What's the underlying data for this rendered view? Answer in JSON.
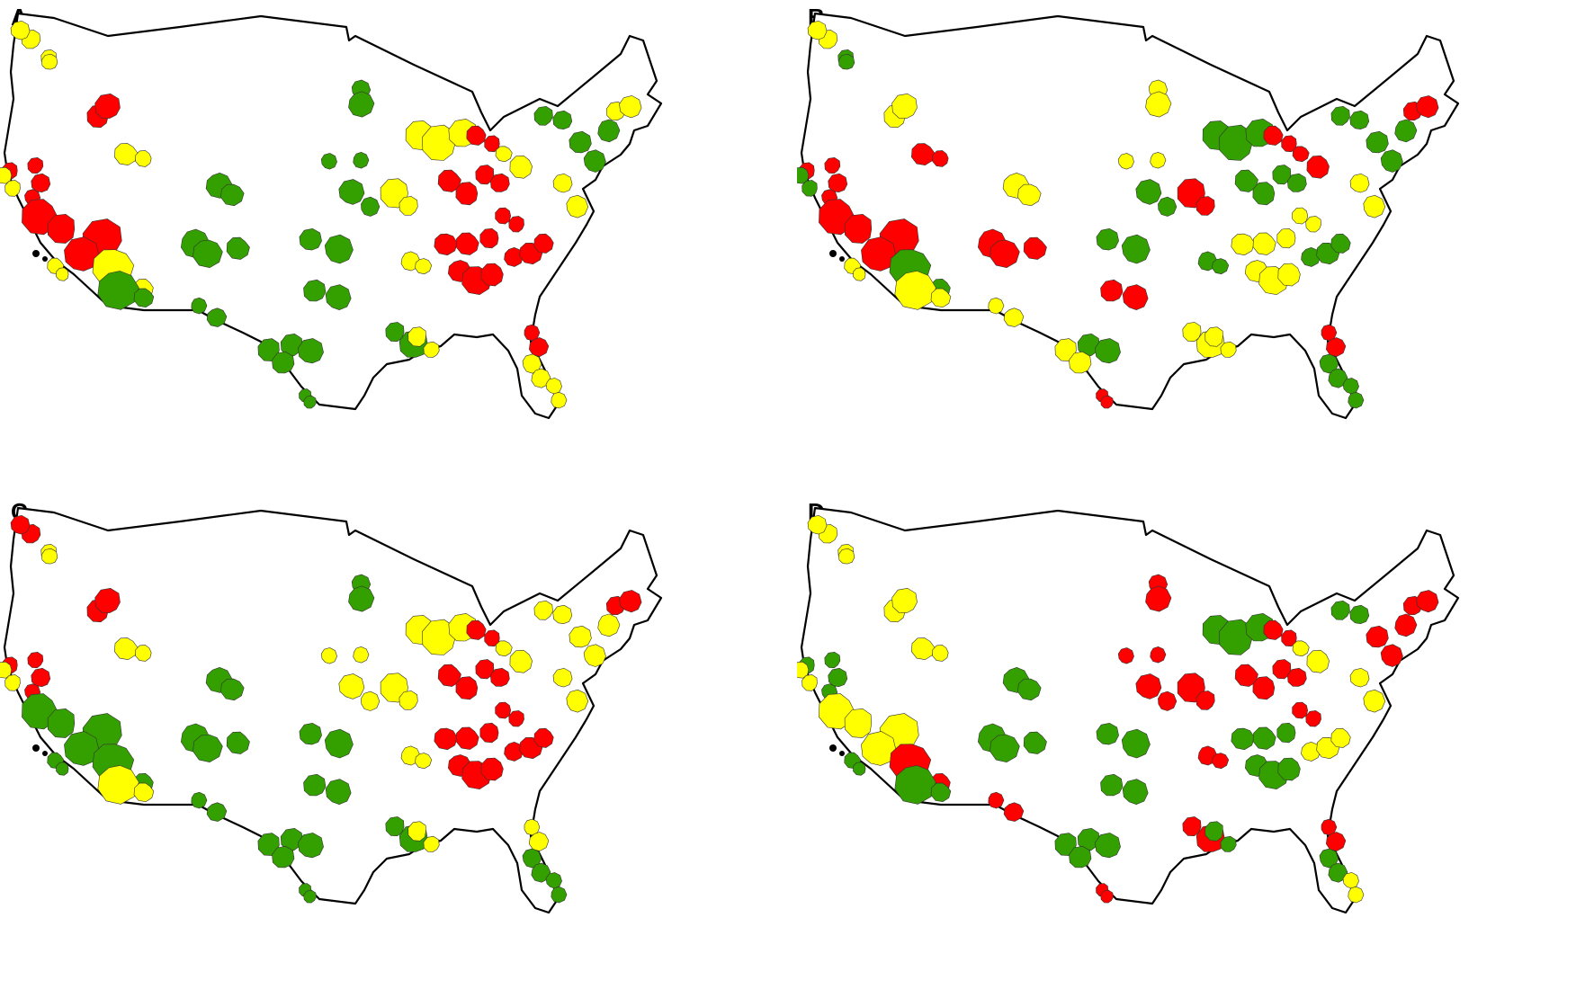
{
  "colors": {
    "red": "#ff0000",
    "yellow": "#ffff00",
    "green": "#33a000",
    "outline": "#000000"
  },
  "panels": [
    {
      "label": "A",
      "regions": [
        {
          "id": "seattle",
          "c": "yellow"
        },
        {
          "id": "portland",
          "c": "yellow"
        },
        {
          "id": "boise",
          "c": "red"
        },
        {
          "id": "sf",
          "c": "red"
        },
        {
          "id": "bayarea",
          "c": "yellow"
        },
        {
          "id": "socal",
          "c": "red"
        },
        {
          "id": "sandiego",
          "c": "yellow"
        },
        {
          "id": "saltlake",
          "c": "yellow"
        },
        {
          "id": "phoenix",
          "c": "yellow"
        },
        {
          "id": "tucson",
          "c": "green"
        },
        {
          "id": "denver",
          "c": "green"
        },
        {
          "id": "abq",
          "c": "green"
        },
        {
          "id": "elpaso",
          "c": "green"
        },
        {
          "id": "minneapolis",
          "c": "green"
        },
        {
          "id": "omaha",
          "c": "green"
        },
        {
          "id": "kc",
          "c": "green"
        },
        {
          "id": "okc",
          "c": "green"
        },
        {
          "id": "dallas",
          "c": "green"
        },
        {
          "id": "austin",
          "c": "green"
        },
        {
          "id": "houston",
          "c": "green"
        },
        {
          "id": "neworleans",
          "c": "yellow"
        },
        {
          "id": "stlouis",
          "c": "yellow"
        },
        {
          "id": "chicago",
          "c": "yellow"
        },
        {
          "id": "detroit",
          "c": "red"
        },
        {
          "id": "ohio",
          "c": "red"
        },
        {
          "id": "pitt",
          "c": "yellow"
        },
        {
          "id": "nashville",
          "c": "red"
        },
        {
          "id": "atlanta",
          "c": "red"
        },
        {
          "id": "carolina",
          "c": "red"
        },
        {
          "id": "memphis",
          "c": "yellow"
        },
        {
          "id": "jacksonville",
          "c": "red"
        },
        {
          "id": "tampa",
          "c": "yellow"
        },
        {
          "id": "miami",
          "c": "yellow"
        },
        {
          "id": "dc",
          "c": "yellow"
        },
        {
          "id": "ny",
          "c": "green"
        },
        {
          "id": "boston",
          "c": "yellow"
        },
        {
          "id": "buffalo",
          "c": "green"
        },
        {
          "id": "sanantonio",
          "c": "green"
        },
        {
          "id": "rgv",
          "c": "green"
        },
        {
          "id": "louisville",
          "c": "red"
        }
      ]
    },
    {
      "label": "B",
      "regions": [
        {
          "id": "seattle",
          "c": "yellow"
        },
        {
          "id": "portland",
          "c": "green"
        },
        {
          "id": "boise",
          "c": "yellow"
        },
        {
          "id": "sf",
          "c": "red"
        },
        {
          "id": "bayarea",
          "c": "green"
        },
        {
          "id": "socal",
          "c": "red"
        },
        {
          "id": "sandiego",
          "c": "yellow"
        },
        {
          "id": "saltlake",
          "c": "red"
        },
        {
          "id": "phoenix",
          "c": "green"
        },
        {
          "id": "tucson",
          "c": "yellow"
        },
        {
          "id": "denver",
          "c": "yellow"
        },
        {
          "id": "abq",
          "c": "red"
        },
        {
          "id": "elpaso",
          "c": "yellow"
        },
        {
          "id": "minneapolis",
          "c": "yellow"
        },
        {
          "id": "omaha",
          "c": "yellow"
        },
        {
          "id": "kc",
          "c": "green"
        },
        {
          "id": "okc",
          "c": "green"
        },
        {
          "id": "dallas",
          "c": "red"
        },
        {
          "id": "austin",
          "c": "green"
        },
        {
          "id": "houston",
          "c": "yellow"
        },
        {
          "id": "neworleans",
          "c": "yellow"
        },
        {
          "id": "stlouis",
          "c": "red"
        },
        {
          "id": "chicago",
          "c": "green"
        },
        {
          "id": "detroit",
          "c": "red"
        },
        {
          "id": "ohio",
          "c": "green"
        },
        {
          "id": "pitt",
          "c": "red"
        },
        {
          "id": "nashville",
          "c": "yellow"
        },
        {
          "id": "atlanta",
          "c": "yellow"
        },
        {
          "id": "carolina",
          "c": "green"
        },
        {
          "id": "memphis",
          "c": "green"
        },
        {
          "id": "jacksonville",
          "c": "red"
        },
        {
          "id": "tampa",
          "c": "green"
        },
        {
          "id": "miami",
          "c": "green"
        },
        {
          "id": "dc",
          "c": "yellow"
        },
        {
          "id": "ny",
          "c": "green"
        },
        {
          "id": "boston",
          "c": "red"
        },
        {
          "id": "buffalo",
          "c": "green"
        },
        {
          "id": "sanantonio",
          "c": "yellow"
        },
        {
          "id": "rgv",
          "c": "red"
        },
        {
          "id": "louisville",
          "c": "yellow"
        }
      ]
    },
    {
      "label": "C",
      "regions": [
        {
          "id": "seattle",
          "c": "red"
        },
        {
          "id": "portland",
          "c": "yellow"
        },
        {
          "id": "boise",
          "c": "red"
        },
        {
          "id": "sf",
          "c": "red"
        },
        {
          "id": "bayarea",
          "c": "yellow"
        },
        {
          "id": "socal",
          "c": "green"
        },
        {
          "id": "sandiego",
          "c": "green"
        },
        {
          "id": "saltlake",
          "c": "yellow"
        },
        {
          "id": "phoenix",
          "c": "green"
        },
        {
          "id": "tucson",
          "c": "yellow"
        },
        {
          "id": "denver",
          "c": "green"
        },
        {
          "id": "abq",
          "c": "green"
        },
        {
          "id": "elpaso",
          "c": "green"
        },
        {
          "id": "minneapolis",
          "c": "green"
        },
        {
          "id": "omaha",
          "c": "yellow"
        },
        {
          "id": "kc",
          "c": "yellow"
        },
        {
          "id": "okc",
          "c": "green"
        },
        {
          "id": "dallas",
          "c": "green"
        },
        {
          "id": "austin",
          "c": "green"
        },
        {
          "id": "houston",
          "c": "green"
        },
        {
          "id": "neworleans",
          "c": "yellow"
        },
        {
          "id": "stlouis",
          "c": "yellow"
        },
        {
          "id": "chicago",
          "c": "yellow"
        },
        {
          "id": "detroit",
          "c": "red"
        },
        {
          "id": "ohio",
          "c": "red"
        },
        {
          "id": "pitt",
          "c": "yellow"
        },
        {
          "id": "nashville",
          "c": "red"
        },
        {
          "id": "atlanta",
          "c": "red"
        },
        {
          "id": "carolina",
          "c": "red"
        },
        {
          "id": "memphis",
          "c": "yellow"
        },
        {
          "id": "jacksonville",
          "c": "yellow"
        },
        {
          "id": "tampa",
          "c": "green"
        },
        {
          "id": "miami",
          "c": "green"
        },
        {
          "id": "dc",
          "c": "yellow"
        },
        {
          "id": "ny",
          "c": "yellow"
        },
        {
          "id": "boston",
          "c": "red"
        },
        {
          "id": "buffalo",
          "c": "yellow"
        },
        {
          "id": "sanantonio",
          "c": "green"
        },
        {
          "id": "rgv",
          "c": "green"
        },
        {
          "id": "louisville",
          "c": "red"
        }
      ]
    },
    {
      "label": "D",
      "regions": [
        {
          "id": "seattle",
          "c": "yellow"
        },
        {
          "id": "portland",
          "c": "yellow"
        },
        {
          "id": "boise",
          "c": "yellow"
        },
        {
          "id": "sf",
          "c": "green"
        },
        {
          "id": "bayarea",
          "c": "yellow"
        },
        {
          "id": "socal",
          "c": "yellow"
        },
        {
          "id": "sandiego",
          "c": "green"
        },
        {
          "id": "saltlake",
          "c": "yellow"
        },
        {
          "id": "phoenix",
          "c": "red"
        },
        {
          "id": "tucson",
          "c": "green"
        },
        {
          "id": "denver",
          "c": "green"
        },
        {
          "id": "abq",
          "c": "green"
        },
        {
          "id": "elpaso",
          "c": "red"
        },
        {
          "id": "minneapolis",
          "c": "red"
        },
        {
          "id": "omaha",
          "c": "red"
        },
        {
          "id": "kc",
          "c": "red"
        },
        {
          "id": "okc",
          "c": "green"
        },
        {
          "id": "dallas",
          "c": "green"
        },
        {
          "id": "austin",
          "c": "green"
        },
        {
          "id": "houston",
          "c": "red"
        },
        {
          "id": "neworleans",
          "c": "green"
        },
        {
          "id": "stlouis",
          "c": "red"
        },
        {
          "id": "chicago",
          "c": "green"
        },
        {
          "id": "detroit",
          "c": "red"
        },
        {
          "id": "ohio",
          "c": "red"
        },
        {
          "id": "pitt",
          "c": "yellow"
        },
        {
          "id": "nashville",
          "c": "green"
        },
        {
          "id": "atlanta",
          "c": "green"
        },
        {
          "id": "carolina",
          "c": "yellow"
        },
        {
          "id": "memphis",
          "c": "red"
        },
        {
          "id": "jacksonville",
          "c": "red"
        },
        {
          "id": "tampa",
          "c": "green"
        },
        {
          "id": "miami",
          "c": "yellow"
        },
        {
          "id": "dc",
          "c": "yellow"
        },
        {
          "id": "ny",
          "c": "red"
        },
        {
          "id": "boston",
          "c": "red"
        },
        {
          "id": "buffalo",
          "c": "green"
        },
        {
          "id": "sanantonio",
          "c": "green"
        },
        {
          "id": "rgv",
          "c": "red"
        },
        {
          "id": "louisville",
          "c": "red"
        }
      ]
    }
  ]
}
